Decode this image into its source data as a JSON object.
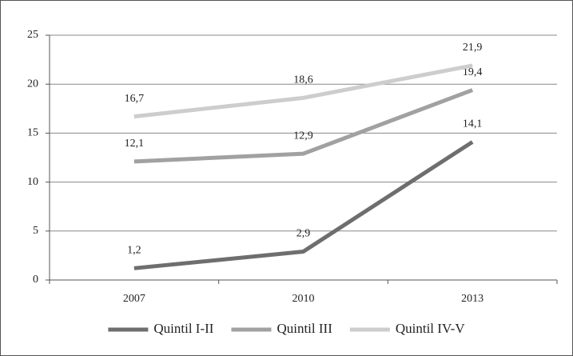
{
  "chart_data": {
    "type": "line",
    "categories": [
      "2007",
      "2010",
      "2013"
    ],
    "series": [
      {
        "name": "Quintil I-II",
        "color": "#6e6e6e",
        "values": [
          1.2,
          2.9,
          14.1
        ],
        "value_labels": [
          "1,2",
          "2,9",
          "14,1"
        ]
      },
      {
        "name": "Quintil III",
        "color": "#a1a1a1",
        "values": [
          12.1,
          12.9,
          19.4
        ],
        "value_labels": [
          "12,1",
          "12,9",
          "19,4"
        ]
      },
      {
        "name": "Quintil IV-V",
        "color": "#cdcdcd",
        "values": [
          16.7,
          18.6,
          21.9
        ],
        "value_labels": [
          "16,7",
          "18,6",
          "21,9"
        ]
      }
    ],
    "ylim": [
      0,
      25
    ],
    "yticks": [
      0,
      5,
      10,
      15,
      20,
      25
    ],
    "grid": true,
    "legend": "bottom"
  }
}
